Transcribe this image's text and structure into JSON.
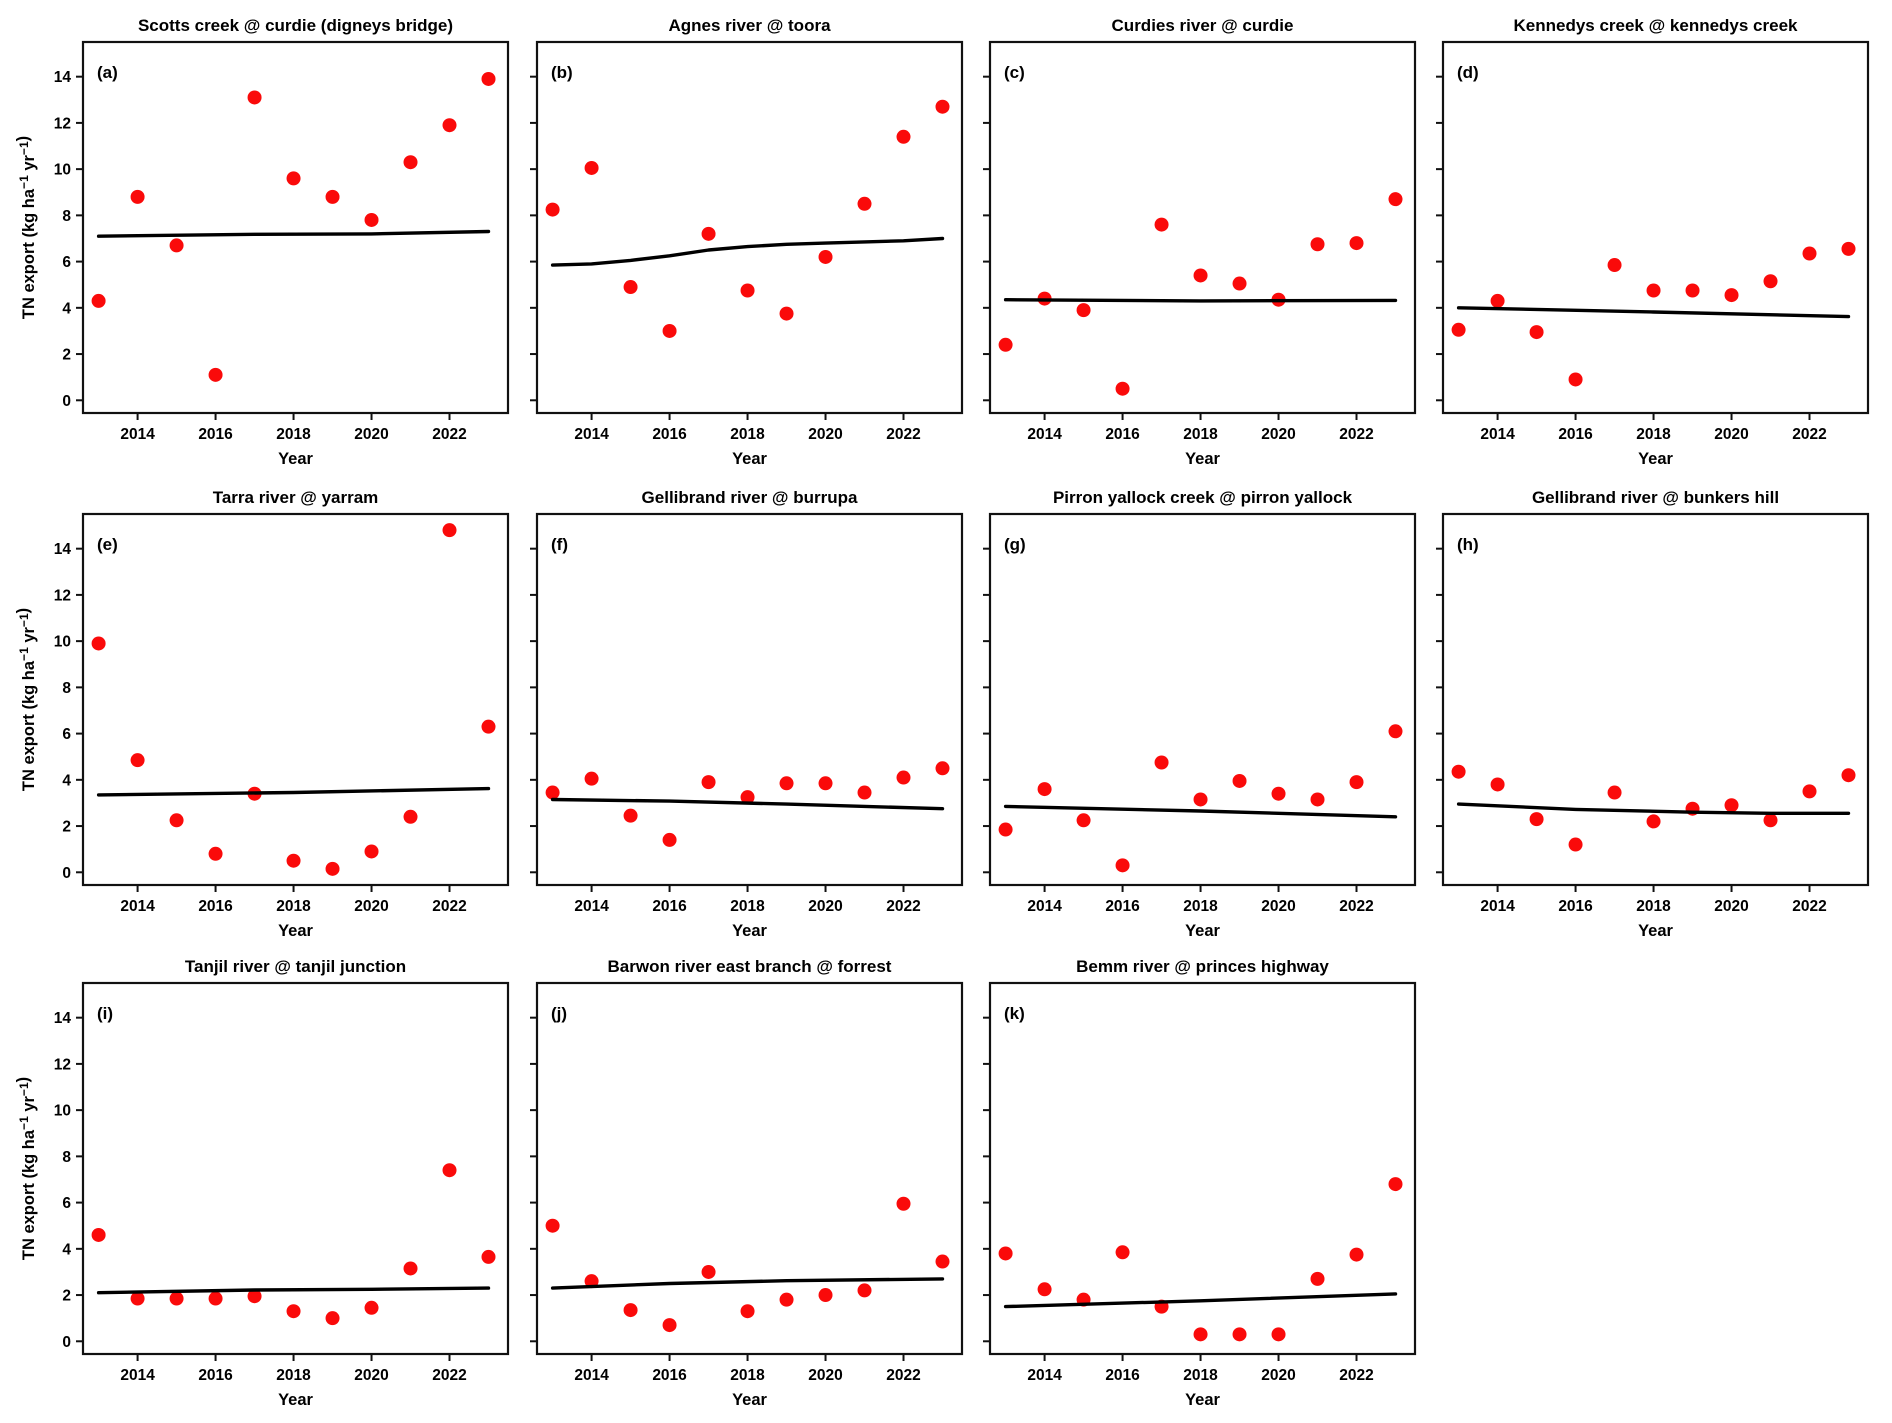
{
  "figure": {
    "xlabel": "Year",
    "ylabel": "TN export (kg ha⁻¹ yr⁻¹)",
    "ylabel_parts": [
      {
        "t": "TN export (kg ha"
      },
      {
        "t": "−1",
        "sup": true
      },
      {
        "t": " yr",
        "space": true
      },
      {
        "t": "−1",
        "sup": true
      },
      {
        "t": ")"
      }
    ],
    "point_color": "#fa0a0a",
    "trend_color": "#000000",
    "frame_color": "#111111",
    "xticks": [
      2014,
      2016,
      2018,
      2020,
      2022
    ],
    "yticks": [
      0,
      2,
      4,
      6,
      8,
      10,
      12,
      14
    ],
    "xlim": [
      2012.6,
      2023.5
    ],
    "ylim": [
      -0.55,
      15.5
    ],
    "grid": "off",
    "legend": "none"
  },
  "chart_data": [
    {
      "type": "scatter",
      "label": "(a)",
      "title": "Scotts creek @ curdie (digneys bridge)",
      "row": 0,
      "col": 0,
      "x": [
        2013,
        2014,
        2015,
        2016,
        2017,
        2018,
        2019,
        2020,
        2021,
        2022,
        2023
      ],
      "y": [
        4.3,
        8.8,
        6.7,
        1.1,
        13.1,
        9.6,
        8.8,
        7.8,
        10.3,
        11.9,
        13.9
      ],
      "trend": [
        [
          2013,
          7.1
        ],
        [
          2017,
          7.18
        ],
        [
          2020,
          7.2
        ],
        [
          2023,
          7.3
        ]
      ]
    },
    {
      "type": "scatter",
      "label": "(b)",
      "title": "Agnes river @ toora",
      "row": 0,
      "col": 1,
      "x": [
        2013,
        2014,
        2015,
        2016,
        2017,
        2018,
        2019,
        2020,
        2021,
        2022,
        2023
      ],
      "y": [
        8.25,
        10.05,
        4.9,
        3.0,
        7.2,
        4.75,
        3.75,
        6.2,
        8.5,
        11.4,
        12.7
      ],
      "trend": [
        [
          2013,
          5.85
        ],
        [
          2014,
          5.9
        ],
        [
          2015,
          6.05
        ],
        [
          2016,
          6.25
        ],
        [
          2017,
          6.5
        ],
        [
          2018,
          6.65
        ],
        [
          2019,
          6.75
        ],
        [
          2020,
          6.8
        ],
        [
          2021,
          6.85
        ],
        [
          2022,
          6.9
        ],
        [
          2023,
          7.0
        ]
      ]
    },
    {
      "type": "scatter",
      "label": "(c)",
      "title": "Curdies river @ curdie",
      "row": 0,
      "col": 2,
      "x": [
        2013,
        2014,
        2015,
        2016,
        2017,
        2018,
        2019,
        2020,
        2021,
        2022,
        2023
      ],
      "y": [
        2.4,
        4.4,
        3.9,
        0.5,
        7.6,
        5.4,
        5.05,
        4.35,
        6.75,
        6.8,
        8.7
      ],
      "trend": [
        [
          2013,
          4.35
        ],
        [
          2018,
          4.3
        ],
        [
          2023,
          4.32
        ]
      ]
    },
    {
      "type": "scatter",
      "label": "(d)",
      "title": "Kennedys creek @ kennedys creek",
      "row": 0,
      "col": 3,
      "x": [
        2013,
        2014,
        2015,
        2016,
        2017,
        2018,
        2019,
        2020,
        2021,
        2022,
        2023
      ],
      "y": [
        3.05,
        4.3,
        2.95,
        0.9,
        5.85,
        4.75,
        4.75,
        4.55,
        5.15,
        6.35,
        6.55
      ],
      "trend": [
        [
          2013,
          4.0
        ],
        [
          2018,
          3.82
        ],
        [
          2023,
          3.62
        ]
      ]
    },
    {
      "type": "scatter",
      "label": "(e)",
      "title": "Tarra river @ yarram",
      "row": 1,
      "col": 0,
      "x": [
        2013,
        2014,
        2015,
        2016,
        2017,
        2018,
        2019,
        2020,
        2021,
        2022,
        2023
      ],
      "y": [
        9.9,
        4.85,
        2.25,
        0.8,
        3.4,
        0.5,
        0.15,
        0.9,
        2.4,
        14.8,
        6.3
      ],
      "trend": [
        [
          2013,
          3.35
        ],
        [
          2018,
          3.45
        ],
        [
          2023,
          3.62
        ]
      ]
    },
    {
      "type": "scatter",
      "label": "(f)",
      "title": "Gellibrand river @ burrupa",
      "row": 1,
      "col": 1,
      "x": [
        2013,
        2014,
        2015,
        2016,
        2017,
        2018,
        2019,
        2020,
        2021,
        2022,
        2023
      ],
      "y": [
        3.45,
        4.05,
        2.45,
        1.4,
        3.9,
        3.25,
        3.85,
        3.85,
        3.45,
        4.1,
        4.5
      ],
      "trend": [
        [
          2013,
          3.15
        ],
        [
          2016,
          3.08
        ],
        [
          2019,
          2.95
        ],
        [
          2023,
          2.75
        ]
      ]
    },
    {
      "type": "scatter",
      "label": "(g)",
      "title": "Pirron yallock creek @ pirron yallock",
      "row": 1,
      "col": 2,
      "x": [
        2013,
        2014,
        2015,
        2016,
        2017,
        2018,
        2019,
        2020,
        2021,
        2022,
        2023
      ],
      "y": [
        1.85,
        3.6,
        2.25,
        0.3,
        4.75,
        3.15,
        3.95,
        3.4,
        3.15,
        3.9,
        6.1
      ],
      "trend": [
        [
          2013,
          2.85
        ],
        [
          2018,
          2.65
        ],
        [
          2023,
          2.4
        ]
      ]
    },
    {
      "type": "scatter",
      "label": "(h)",
      "title": "Gellibrand river @ bunkers hill",
      "row": 1,
      "col": 3,
      "x": [
        2013,
        2014,
        2015,
        2016,
        2017,
        2018,
        2019,
        2020,
        2021,
        2022,
        2023
      ],
      "y": [
        4.35,
        3.8,
        2.3,
        1.2,
        3.45,
        2.2,
        2.75,
        2.9,
        2.25,
        3.5,
        4.2
      ],
      "trend": [
        [
          2013,
          2.95
        ],
        [
          2016,
          2.72
        ],
        [
          2019,
          2.6
        ],
        [
          2021,
          2.55
        ],
        [
          2023,
          2.55
        ]
      ]
    },
    {
      "type": "scatter",
      "label": "(i)",
      "title": "Tanjil river @ tanjil junction",
      "row": 2,
      "col": 0,
      "x": [
        2013,
        2014,
        2015,
        2016,
        2017,
        2018,
        2019,
        2020,
        2021,
        2022,
        2023
      ],
      "y": [
        4.6,
        1.85,
        1.85,
        1.85,
        1.95,
        1.3,
        1.0,
        1.45,
        3.15,
        7.4,
        3.65
      ],
      "trend": [
        [
          2013,
          2.1
        ],
        [
          2017,
          2.22
        ],
        [
          2020,
          2.25
        ],
        [
          2023,
          2.3
        ]
      ]
    },
    {
      "type": "scatter",
      "label": "(j)",
      "title": "Barwon river east branch @ forrest",
      "row": 2,
      "col": 1,
      "x": [
        2013,
        2014,
        2015,
        2016,
        2017,
        2018,
        2019,
        2020,
        2021,
        2022,
        2023
      ],
      "y": [
        5.0,
        2.6,
        1.35,
        0.7,
        3.0,
        1.3,
        1.8,
        2.0,
        2.2,
        5.95,
        3.45
      ],
      "trend": [
        [
          2013,
          2.3
        ],
        [
          2016,
          2.5
        ],
        [
          2019,
          2.62
        ],
        [
          2023,
          2.7
        ]
      ]
    },
    {
      "type": "scatter",
      "label": "(k)",
      "title": "Bemm river @ princes highway",
      "row": 2,
      "col": 2,
      "x": [
        2013,
        2014,
        2015,
        2016,
        2017,
        2018,
        2019,
        2020,
        2021,
        2022,
        2023
      ],
      "y": [
        3.8,
        2.25,
        1.8,
        3.85,
        1.5,
        0.3,
        0.3,
        0.3,
        2.7,
        3.75,
        6.8
      ],
      "trend": [
        [
          2013,
          1.5
        ],
        [
          2018,
          1.75
        ],
        [
          2023,
          2.05
        ]
      ]
    }
  ]
}
